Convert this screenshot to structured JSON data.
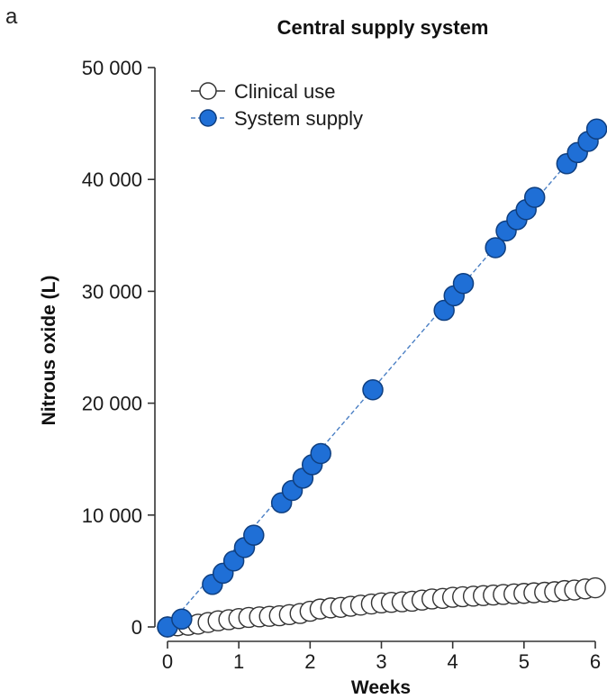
{
  "panel_label": "a",
  "colors": {
    "system_fill": "#1f6fd6",
    "system_stroke": "#0f3f80",
    "clinical_fill": "#ffffff",
    "clinical_stroke": "#333333",
    "trend_line": "#4a7fc4"
  },
  "chart_data": {
    "type": "scatter",
    "title": "Central supply system",
    "xlabel": "Weeks",
    "ylabel": "Nitrous oxide (L)",
    "xlim": [
      0,
      6
    ],
    "ylim": [
      0,
      50000
    ],
    "x_ticks": [
      0,
      1,
      2,
      3,
      4,
      5,
      6
    ],
    "x_tick_labels": [
      "0",
      "1",
      "2",
      "3",
      "4",
      "5",
      "6"
    ],
    "y_ticks": [
      0,
      10000,
      20000,
      30000,
      40000,
      50000
    ],
    "y_tick_labels": [
      "0",
      "10 000",
      "20 000",
      "30 000",
      "40 000",
      "50 000"
    ],
    "legend": {
      "position": "top-left"
    },
    "series": [
      {
        "name": "Clinical use",
        "marker": "open-circle",
        "x": [
          0.0,
          0.14,
          0.29,
          0.43,
          0.57,
          0.71,
          0.86,
          1.0,
          1.14,
          1.29,
          1.43,
          1.57,
          1.71,
          1.86,
          2.0,
          2.14,
          2.29,
          2.43,
          2.57,
          2.71,
          2.86,
          3.0,
          3.14,
          3.29,
          3.43,
          3.57,
          3.71,
          3.86,
          4.0,
          4.14,
          4.29,
          4.43,
          4.57,
          4.71,
          4.86,
          5.0,
          5.14,
          5.29,
          5.43,
          5.57,
          5.71,
          5.86,
          6.0
        ],
        "y": [
          0,
          100,
          150,
          250,
          400,
          550,
          650,
          750,
          850,
          900,
          950,
          1000,
          1100,
          1200,
          1400,
          1600,
          1700,
          1750,
          1850,
          1950,
          2050,
          2150,
          2200,
          2250,
          2300,
          2400,
          2500,
          2550,
          2650,
          2700,
          2750,
          2800,
          2850,
          2900,
          2950,
          3000,
          3050,
          3100,
          3150,
          3250,
          3300,
          3400,
          3500
        ]
      },
      {
        "name": "System supply",
        "marker": "filled-circle",
        "line": "dashed",
        "x": [
          0.0,
          0.2,
          0.63,
          0.78,
          0.93,
          1.08,
          1.21,
          1.6,
          1.75,
          1.9,
          2.03,
          2.15,
          2.88,
          3.88,
          4.02,
          4.15,
          4.6,
          4.75,
          4.9,
          5.03,
          5.15,
          5.6,
          5.75,
          5.9,
          6.02
        ],
        "y": [
          0,
          700,
          3800,
          4800,
          5900,
          7100,
          8200,
          11100,
          12200,
          13300,
          14500,
          15500,
          21200,
          28300,
          29600,
          30700,
          33900,
          35400,
          36400,
          37300,
          38400,
          41400,
          42400,
          43400,
          44500
        ]
      }
    ]
  }
}
